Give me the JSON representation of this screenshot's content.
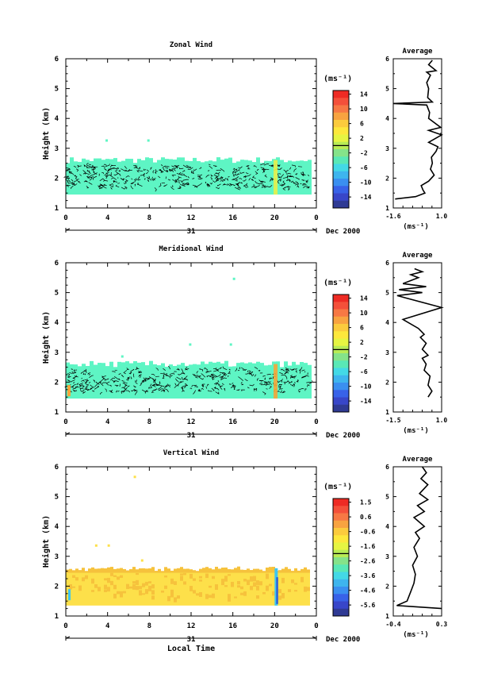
{
  "chart_data": [
    {
      "type": "heatmap",
      "title": "Zonal Wind",
      "ylabel": "Height (km)",
      "ylim": [
        1,
        6
      ],
      "yticks": [
        "1",
        "2",
        "3",
        "4",
        "5",
        "6"
      ],
      "xlim": [
        0,
        24
      ],
      "xticks": [
        "0",
        "4",
        "8",
        "12",
        "16",
        "20",
        "0"
      ],
      "day_label": "31",
      "date_label": "Dec 2000",
      "colorbar": {
        "unit": "(ms⁻¹)",
        "labels": [
          "14",
          "10",
          "6",
          "2",
          "-2",
          "-6",
          "-10",
          "-14"
        ],
        "colors": [
          "#ee2b24",
          "#f4503a",
          "#f77844",
          "#f8a340",
          "#fbcb3d",
          "#fde83c",
          "#e6f542",
          "#b8ec55",
          "#85e38a",
          "#59e8b6",
          "#43d9e6",
          "#3eb5ee",
          "#3a8ff0",
          "#3862e8",
          "#3846c9",
          "#2f3a94"
        ]
      },
      "profile": {
        "title": "Average",
        "xlim": [
          -1.6,
          1.0
        ],
        "xticks": [
          "-1.6",
          "1.0"
        ],
        "xlabel": "(ms⁻¹)",
        "points": [
          [
            -1.5,
            1.3
          ],
          [
            -0.4,
            1.38
          ],
          [
            0.1,
            1.5
          ],
          [
            0.0,
            1.6
          ],
          [
            -0.1,
            1.75
          ],
          [
            0.3,
            1.9
          ],
          [
            0.6,
            2.1
          ],
          [
            0.4,
            2.3
          ],
          [
            0.5,
            2.5
          ],
          [
            0.45,
            2.7
          ],
          [
            0.7,
            2.9
          ],
          [
            0.8,
            3.05
          ],
          [
            0.3,
            3.2
          ],
          [
            1.0,
            3.45
          ],
          [
            0.3,
            3.6
          ],
          [
            0.95,
            3.7
          ],
          [
            0.3,
            4.0
          ],
          [
            0.35,
            4.2
          ],
          [
            0.2,
            4.45
          ],
          [
            -1.6,
            4.5
          ],
          [
            0.5,
            4.55
          ],
          [
            0.25,
            4.7
          ],
          [
            0.3,
            5.0
          ],
          [
            0.2,
            5.2
          ],
          [
            0.4,
            5.45
          ],
          [
            0.2,
            5.55
          ],
          [
            0.7,
            5.6
          ],
          [
            0.3,
            5.8
          ],
          [
            0.5,
            5.95
          ]
        ]
      }
    },
    {
      "type": "heatmap",
      "title": "Meridional Wind",
      "ylabel": "Height (km)",
      "ylim": [
        1,
        6
      ],
      "yticks": [
        "1",
        "2",
        "3",
        "4",
        "5",
        "6"
      ],
      "xlim": [
        0,
        24
      ],
      "xticks": [
        "0",
        "4",
        "8",
        "12",
        "16",
        "20",
        "0"
      ],
      "day_label": "31",
      "date_label": "Dec 2000",
      "colorbar": {
        "unit": "(ms⁻¹)",
        "labels": [
          "14",
          "10",
          "6",
          "2",
          "-2",
          "-6",
          "-10",
          "-14"
        ],
        "colors": [
          "#ee2b24",
          "#f4503a",
          "#f77844",
          "#f8a340",
          "#fbcb3d",
          "#fde83c",
          "#e6f542",
          "#b8ec55",
          "#85e38a",
          "#59e8b6",
          "#43d9e6",
          "#3eb5ee",
          "#3a8ff0",
          "#3862e8",
          "#3846c9",
          "#2f3a94"
        ]
      },
      "profile": {
        "title": "Average",
        "xlim": [
          -1.5,
          1.0
        ],
        "xticks": [
          "-1.5",
          "1.0"
        ],
        "xlabel": "(ms⁻¹)",
        "points": [
          [
            0.3,
            1.5
          ],
          [
            0.5,
            1.7
          ],
          [
            0.3,
            1.9
          ],
          [
            0.4,
            2.2
          ],
          [
            0.1,
            2.4
          ],
          [
            0.2,
            2.6
          ],
          [
            0.0,
            2.8
          ],
          [
            0.3,
            2.9
          ],
          [
            0.0,
            3.1
          ],
          [
            0.2,
            3.3
          ],
          [
            -0.1,
            3.5
          ],
          [
            0.1,
            3.6
          ],
          [
            -0.2,
            3.8
          ],
          [
            -1.0,
            4.1
          ],
          [
            1.0,
            4.5
          ],
          [
            -1.3,
            4.9
          ],
          [
            0.0,
            5.0
          ],
          [
            -1.2,
            5.1
          ],
          [
            0.2,
            5.2
          ],
          [
            -1.0,
            5.3
          ],
          [
            -0.2,
            5.5
          ],
          [
            -0.6,
            5.6
          ],
          [
            0.0,
            5.7
          ],
          [
            -0.4,
            5.8
          ]
        ]
      }
    },
    {
      "type": "heatmap",
      "title": "Vertical Wind",
      "ylabel": "Height (km)",
      "xlabel": "Local Time",
      "ylim": [
        1,
        6
      ],
      "yticks": [
        "1",
        "2",
        "3",
        "4",
        "5",
        "6"
      ],
      "xlim": [
        0,
        24
      ],
      "xticks": [
        "0",
        "4",
        "8",
        "12",
        "16",
        "20",
        "0"
      ],
      "day_label": "31",
      "date_label": "Dec 2000",
      "colorbar": {
        "unit": "(ms⁻¹)",
        "labels": [
          "1.5",
          "0.6",
          "-0.6",
          "-1.6",
          "-2.6",
          "-3.6",
          "-4.6",
          "-5.6"
        ],
        "colors": [
          "#ee2b24",
          "#f4503a",
          "#f77844",
          "#f8a340",
          "#fbcb3d",
          "#fde83c",
          "#e6f542",
          "#b8ec55",
          "#85e38a",
          "#59e8b6",
          "#43d9e6",
          "#3eb5ee",
          "#3a8ff0",
          "#3862e8",
          "#3846c9",
          "#2f3a94"
        ]
      },
      "profile": {
        "title": "Average",
        "xlim": [
          -0.4,
          0.3
        ],
        "xticks": [
          "-0.4",
          "0.3"
        ],
        "xlabel": "(ms⁻¹)",
        "points": [
          [
            0.3,
            1.25
          ],
          [
            -0.35,
            1.35
          ],
          [
            -0.2,
            1.5
          ],
          [
            -0.15,
            1.8
          ],
          [
            -0.1,
            2.1
          ],
          [
            -0.08,
            2.4
          ],
          [
            -0.12,
            2.7
          ],
          [
            -0.05,
            3.0
          ],
          [
            -0.1,
            3.3
          ],
          [
            -0.02,
            3.6
          ],
          [
            -0.08,
            3.8
          ],
          [
            0.05,
            4.0
          ],
          [
            -0.1,
            4.3
          ],
          [
            0.05,
            4.5
          ],
          [
            -0.05,
            4.7
          ],
          [
            0.1,
            4.9
          ],
          [
            -0.02,
            5.1
          ],
          [
            0.1,
            5.4
          ],
          [
            0.0,
            5.6
          ],
          [
            0.08,
            5.8
          ],
          [
            0.02,
            6.0
          ]
        ]
      }
    }
  ],
  "field_colors": {
    "zonal_main": "#5ef5c4",
    "zonal_stripe": "#e8f04a",
    "meridional_main": "#5ef5c4",
    "meridional_stripe": "#f5a63a",
    "vertical_main": "#fde04a",
    "vertical_dark": "#f6c23c",
    "vertical_cyan": "#3ec6f0",
    "vertical_blue": "#2f5fd6"
  }
}
